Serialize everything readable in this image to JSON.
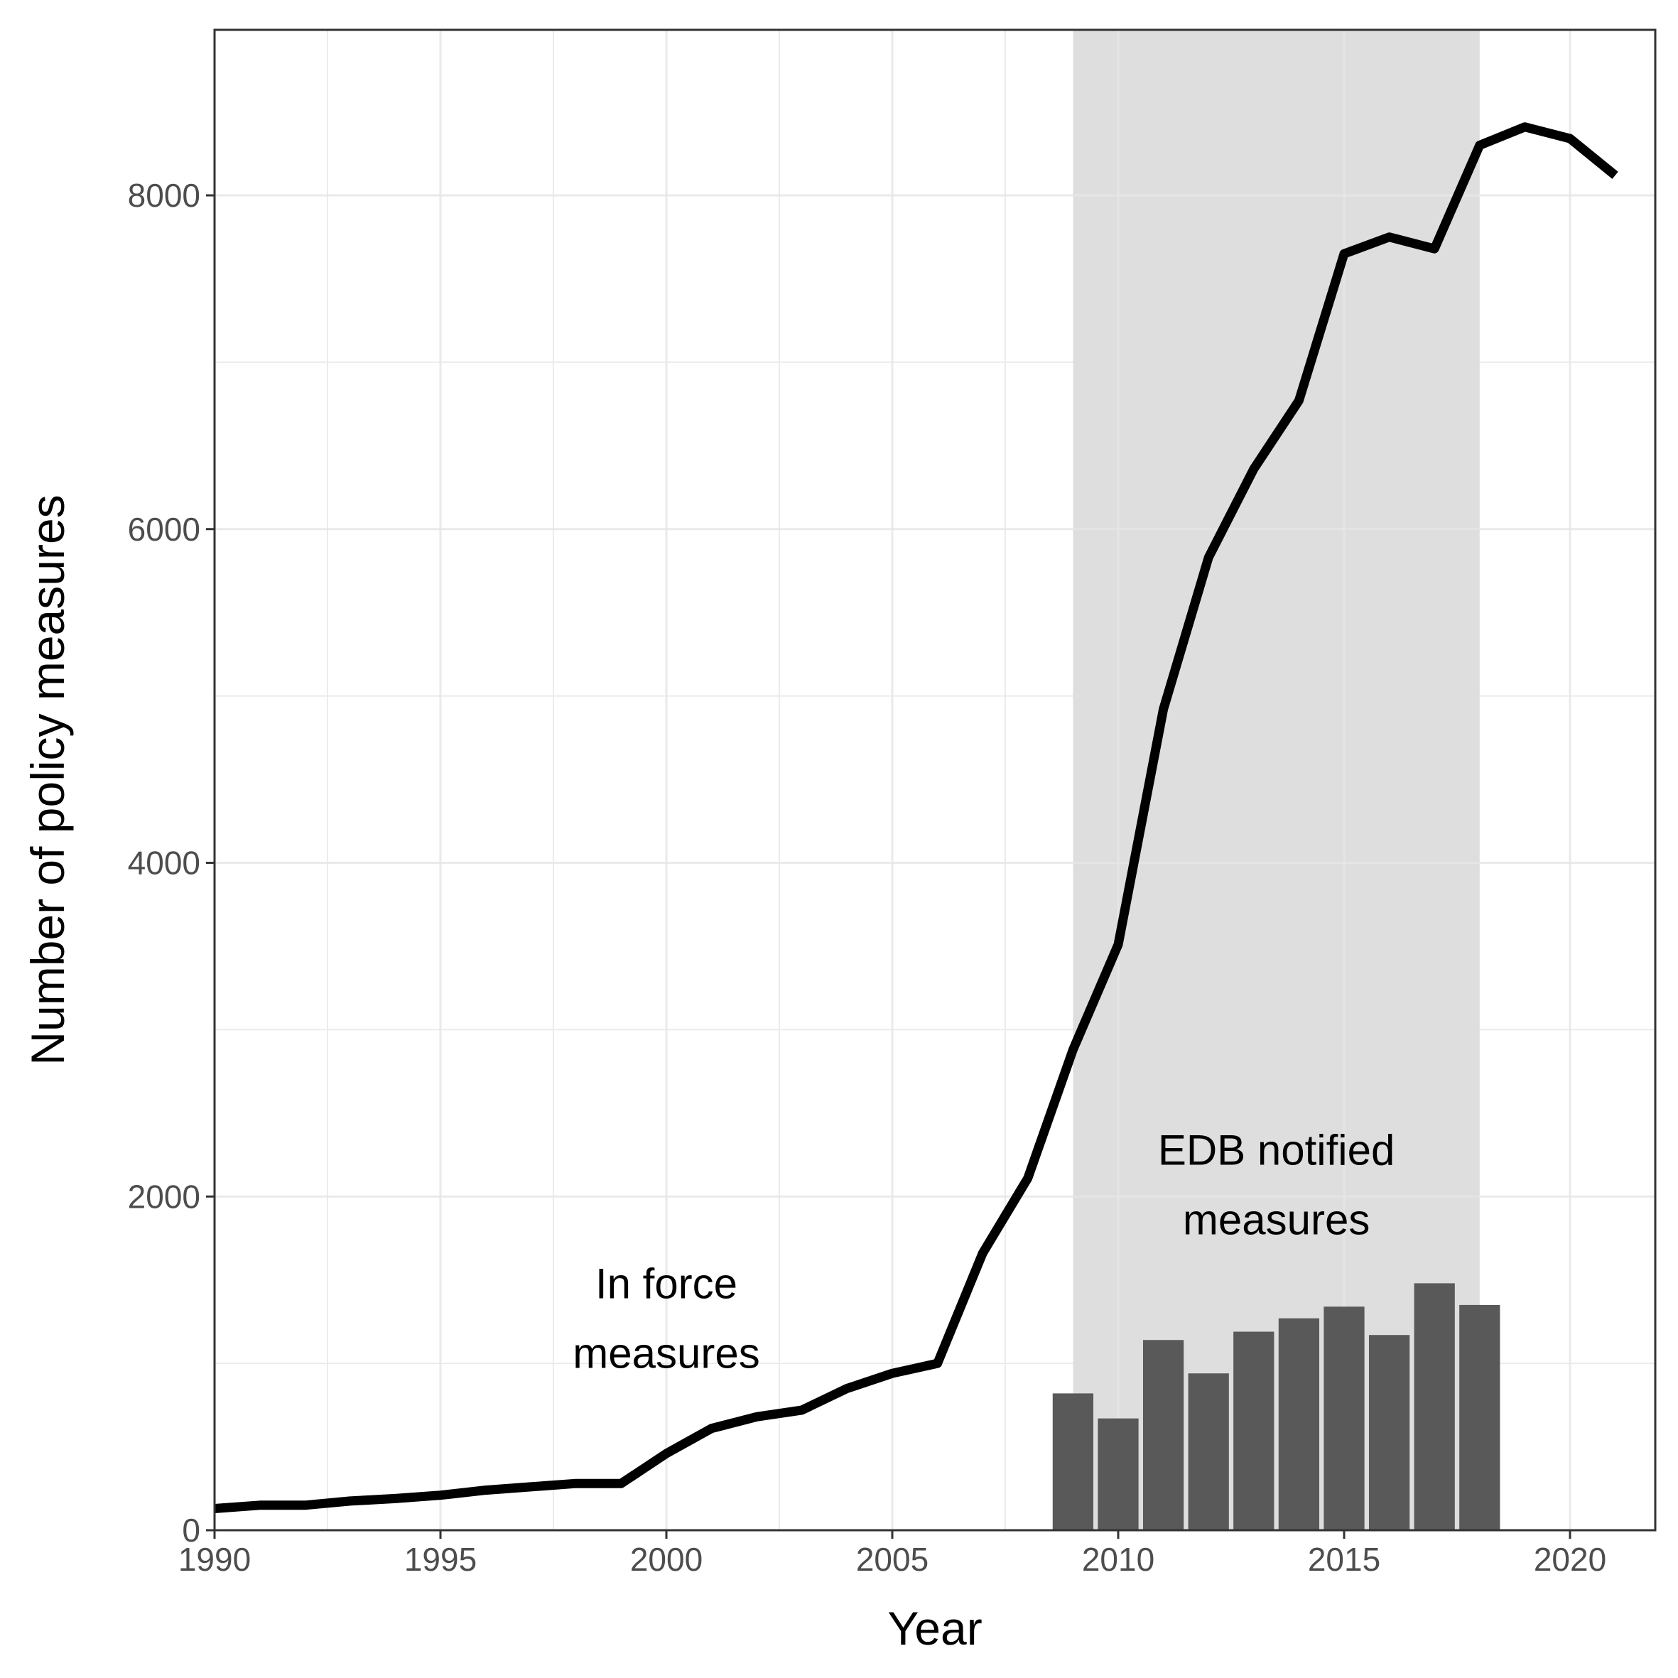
{
  "chart_data": {
    "type": "line",
    "xlabel": "Year",
    "ylabel": "Number of policy measures",
    "xlim": [
      1990,
      2022
    ],
    "ylim": [
      0,
      9000
    ],
    "x_ticks": [
      1990,
      1995,
      2000,
      2005,
      2010,
      2015,
      2020
    ],
    "y_ticks": [
      0,
      2000,
      4000,
      6000,
      8000
    ],
    "grid": true,
    "shaded_region": {
      "x": [
        2009,
        2018
      ],
      "color": "#dedede"
    },
    "series": [
      {
        "type": "line",
        "x": [
          1990,
          1991,
          1992,
          1993,
          1994,
          1995,
          1996,
          1997,
          1998,
          1999,
          2000,
          2001,
          2002,
          2003,
          2004,
          2005,
          2006,
          2007,
          2008,
          2009,
          2010,
          2011,
          2012,
          2013,
          2014,
          2015,
          2016,
          2017,
          2018,
          2019,
          2020,
          2021
        ],
        "values": [
          130,
          150,
          150,
          175,
          190,
          210,
          240,
          260,
          280,
          280,
          460,
          610,
          680,
          720,
          850,
          940,
          1000,
          1660,
          2110,
          2880,
          3510,
          4920,
          5830,
          6360,
          6770,
          7650,
          7750,
          7680,
          8300,
          8410,
          8340,
          8120
        ],
        "color": "#000000"
      },
      {
        "type": "bar",
        "x": [
          2009,
          2010,
          2011,
          2012,
          2013,
          2014,
          2015,
          2016,
          2017,
          2018
        ],
        "values": [
          820,
          670,
          1140,
          940,
          1190,
          1270,
          1340,
          1170,
          1480,
          1350
        ],
        "color": "#595959"
      }
    ],
    "annotations": [
      {
        "lines": [
          "In force",
          "measures"
        ],
        "x": 2000,
        "y": 1390
      },
      {
        "lines": [
          "EDB notified",
          "measures"
        ],
        "x": 2013.5,
        "y": 2190
      }
    ]
  }
}
